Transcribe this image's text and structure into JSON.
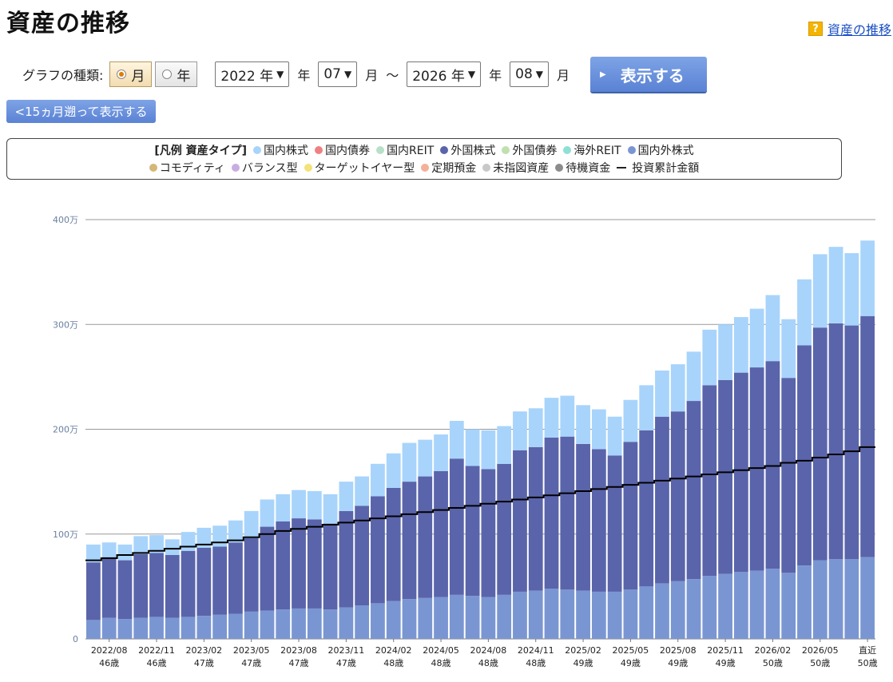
{
  "header": {
    "title": "資産の推移",
    "help_link": "資産の推移",
    "help_icon": "question-icon"
  },
  "controls": {
    "graph_type_label": "グラフの種類:",
    "type_month": "月",
    "type_year": "年",
    "selected_type": "月",
    "start_year": "2022 年",
    "start_year_unit": "年",
    "start_month": "07",
    "start_month_unit": "月",
    "range_sep": "～",
    "end_year": "2026 年",
    "end_year_unit": "年",
    "end_month": "08",
    "end_month_unit": "月",
    "show_button": "表示する",
    "back_button": "<15ヵ月遡って表示する"
  },
  "legend": {
    "title": "[凡例 資産タイプ]",
    "items_row1": [
      {
        "label": "国内株式",
        "color": "#a8d4fb"
      },
      {
        "label": "国内債券",
        "color": "#f08080"
      },
      {
        "label": "国内REIT",
        "color": "#b8e0c8"
      },
      {
        "label": "外国株式",
        "color": "#5a64aa"
      },
      {
        "label": "外国債券",
        "color": "#c0e0b0"
      },
      {
        "label": "海外REIT",
        "color": "#8ee0d4"
      },
      {
        "label": "国内外株式",
        "color": "#7a96d2"
      }
    ],
    "items_row2": [
      {
        "label": "コモディティ",
        "color": "#d4b878"
      },
      {
        "label": "バランス型",
        "color": "#c8aee0"
      },
      {
        "label": "ターゲットイヤー型",
        "color": "#f4e27a"
      },
      {
        "label": "定期預金",
        "color": "#f4b098"
      },
      {
        "label": "未指図資産",
        "color": "#c8c8c8"
      },
      {
        "label": "待機資金",
        "color": "#8c8c8c"
      }
    ],
    "line_label": "投資累計金額"
  },
  "chart_data": {
    "type": "bar",
    "stacked": true,
    "ylim": [
      0,
      400
    ],
    "yticks": [
      {
        "v": 0,
        "label": "0"
      },
      {
        "v": 100,
        "label": "100万"
      },
      {
        "v": 200,
        "label": "200万"
      },
      {
        "v": 300,
        "label": "300万"
      },
      {
        "v": 400,
        "label": "400万"
      }
    ],
    "x_labels": [
      {
        "i": 1,
        "date": "2022/08",
        "age": "46歳"
      },
      {
        "i": 4,
        "date": "2022/11",
        "age": "46歳"
      },
      {
        "i": 7,
        "date": "2023/02",
        "age": "47歳"
      },
      {
        "i": 10,
        "date": "2023/05",
        "age": "47歳"
      },
      {
        "i": 13,
        "date": "2023/08",
        "age": "47歳"
      },
      {
        "i": 16,
        "date": "2023/11",
        "age": "47歳"
      },
      {
        "i": 19,
        "date": "2024/02",
        "age": "48歳"
      },
      {
        "i": 22,
        "date": "2024/05",
        "age": "48歳"
      },
      {
        "i": 25,
        "date": "2024/08",
        "age": "48歳"
      },
      {
        "i": 28,
        "date": "2024/11",
        "age": "48歳"
      },
      {
        "i": 31,
        "date": "2025/02",
        "age": "49歳"
      },
      {
        "i": 34,
        "date": "2025/05",
        "age": "49歳"
      },
      {
        "i": 37,
        "date": "2025/08",
        "age": "49歳"
      },
      {
        "i": 40,
        "date": "2025/11",
        "age": "49歳"
      },
      {
        "i": 43,
        "date": "2026/02",
        "age": "50歳"
      },
      {
        "i": 46,
        "date": "2026/05",
        "age": "50歳"
      },
      {
        "i": 49,
        "date": "直近",
        "age": "50歳"
      }
    ],
    "series": [
      {
        "name": "国内外株式",
        "color": "#7a96d2",
        "values": [
          18,
          20,
          19,
          20,
          21,
          20,
          21,
          22,
          23,
          24,
          26,
          27,
          28,
          29,
          29,
          28,
          30,
          32,
          34,
          36,
          38,
          39,
          40,
          42,
          41,
          40,
          42,
          45,
          46,
          48,
          47,
          46,
          45,
          45,
          47,
          50,
          53,
          55,
          57,
          60,
          62,
          64,
          65,
          67,
          63,
          70,
          75,
          76,
          76,
          78
        ]
      },
      {
        "name": "外国株式",
        "color": "#5a64aa",
        "values": [
          55,
          58,
          56,
          61,
          61,
          60,
          63,
          65,
          65,
          68,
          70,
          80,
          84,
          86,
          85,
          82,
          92,
          95,
          102,
          108,
          112,
          116,
          120,
          130,
          124,
          122,
          125,
          135,
          137,
          144,
          146,
          140,
          136,
          130,
          141,
          149,
          159,
          162,
          170,
          182,
          185,
          190,
          194,
          198,
          186,
          210,
          222,
          225,
          223,
          230
        ]
      },
      {
        "name": "国内株式",
        "color": "#a8d4fb",
        "values": [
          17,
          14,
          15,
          17,
          17,
          15,
          18,
          19,
          20,
          21,
          26,
          26,
          26,
          27,
          27,
          28,
          28,
          28,
          31,
          33,
          37,
          35,
          35,
          36,
          35,
          37,
          36,
          37,
          37,
          38,
          39,
          37,
          38,
          37,
          40,
          43,
          44,
          45,
          47,
          53,
          53,
          53,
          56,
          63,
          56,
          63,
          70,
          73,
          69,
          72
        ]
      }
    ],
    "line": {
      "name": "投資累計金額",
      "color": "#000000",
      "values": [
        75,
        77,
        80,
        82,
        84,
        86,
        88,
        90,
        92,
        94,
        97,
        100,
        103,
        105,
        107,
        109,
        111,
        113,
        115,
        117,
        119,
        121,
        123,
        125,
        127,
        129,
        131,
        133,
        135,
        137,
        139,
        141,
        143,
        145,
        147,
        149,
        151,
        153,
        155,
        157,
        159,
        161,
        163,
        165,
        168,
        170,
        173,
        176,
        179,
        183
      ]
    }
  }
}
